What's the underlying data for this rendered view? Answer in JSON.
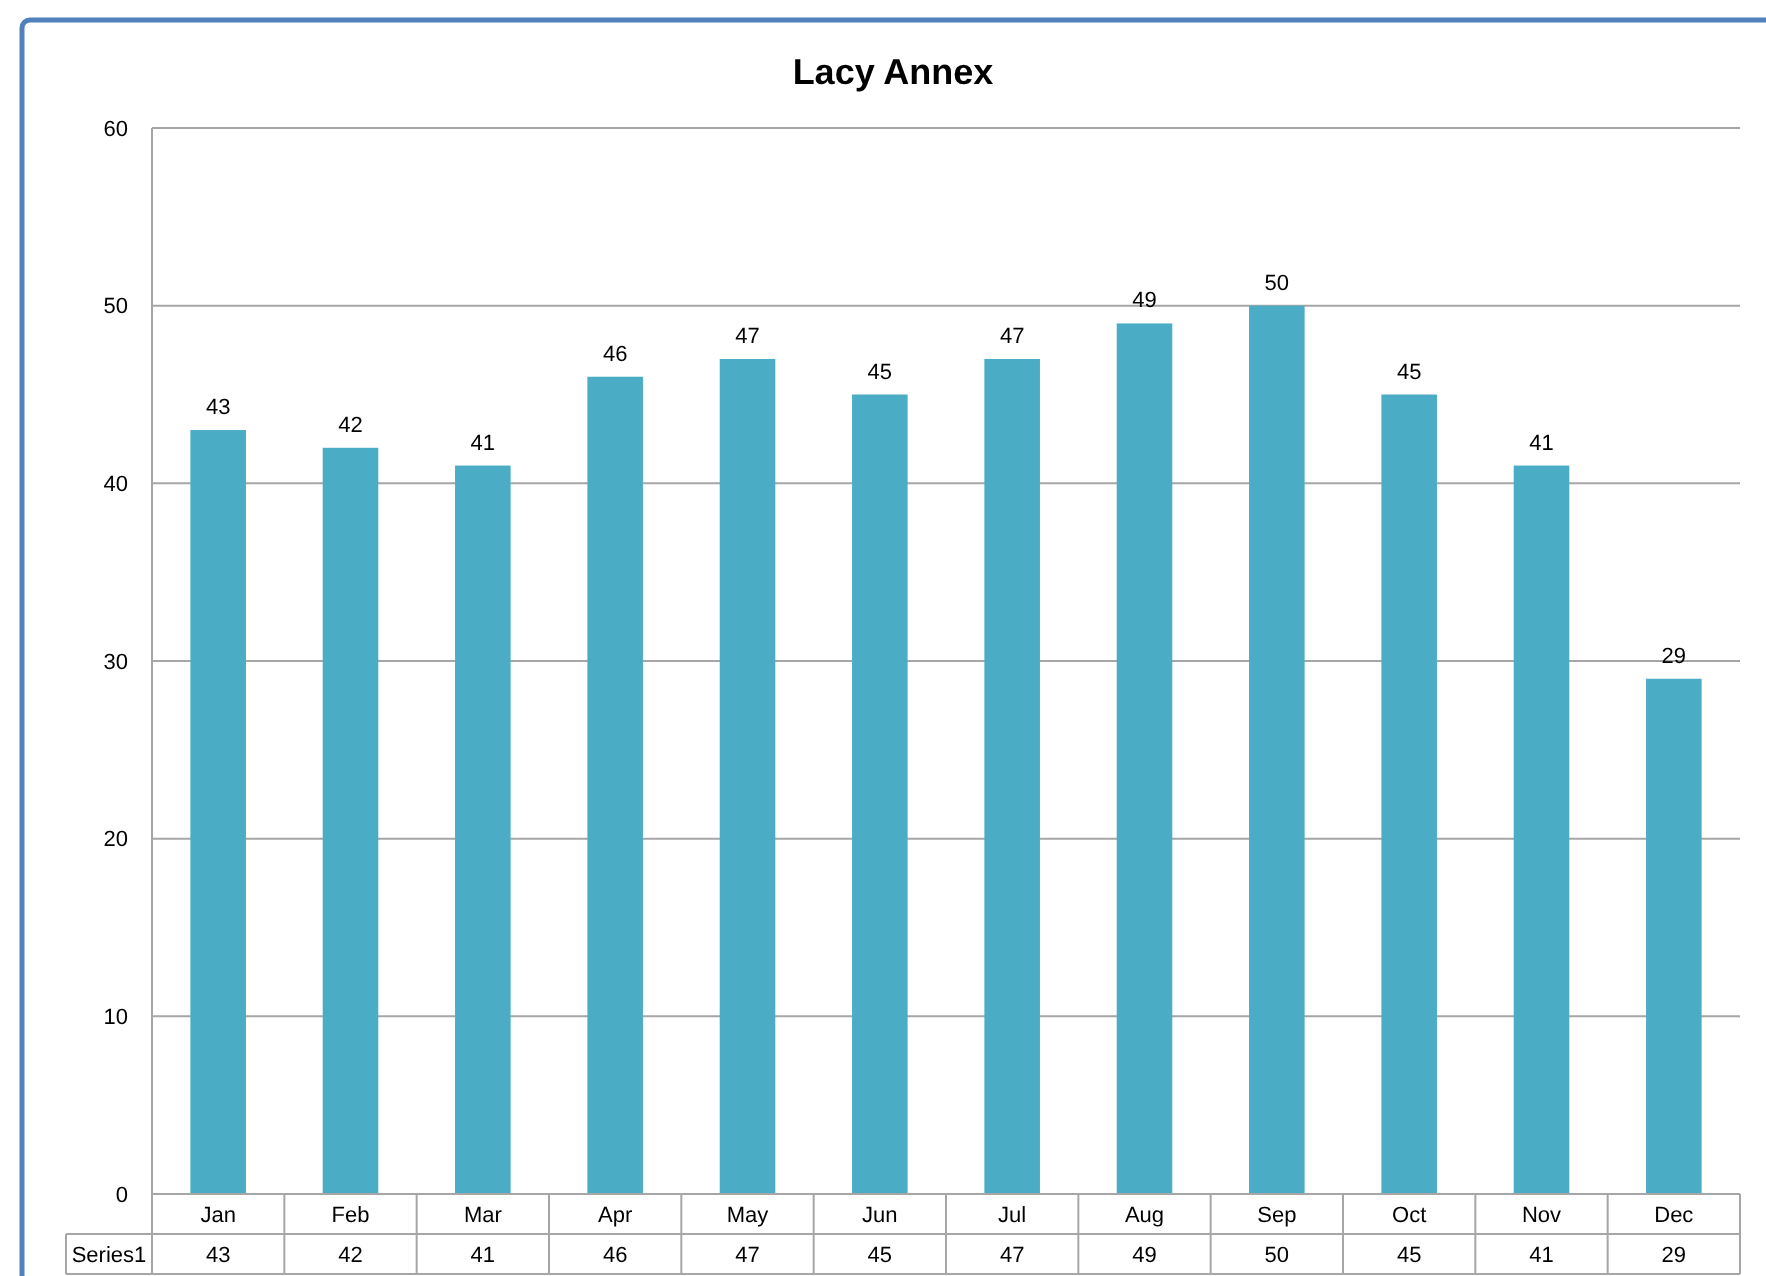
{
  "chart_data": {
    "type": "bar",
    "title": "Lacy Annex",
    "categories": [
      "Jan",
      "Feb",
      "Mar",
      "Apr",
      "May",
      "Jun",
      "Jul",
      "Aug",
      "Sep",
      "Oct",
      "Nov",
      "Dec"
    ],
    "series": [
      {
        "name": "Series1",
        "color": "#4bacc6",
        "values": [
          43,
          42,
          41,
          46,
          47,
          45,
          47,
          49,
          50,
          45,
          41,
          29
        ]
      }
    ],
    "ylim": [
      0,
      60
    ],
    "yticks": [
      0,
      10,
      20,
      30,
      40,
      50,
      60
    ],
    "grid": "y",
    "data_labels": true,
    "annotations": [
      "43",
      "42",
      "41",
      "46",
      "47",
      "45",
      "47",
      "49",
      "50",
      "45",
      "41",
      "29"
    ]
  }
}
